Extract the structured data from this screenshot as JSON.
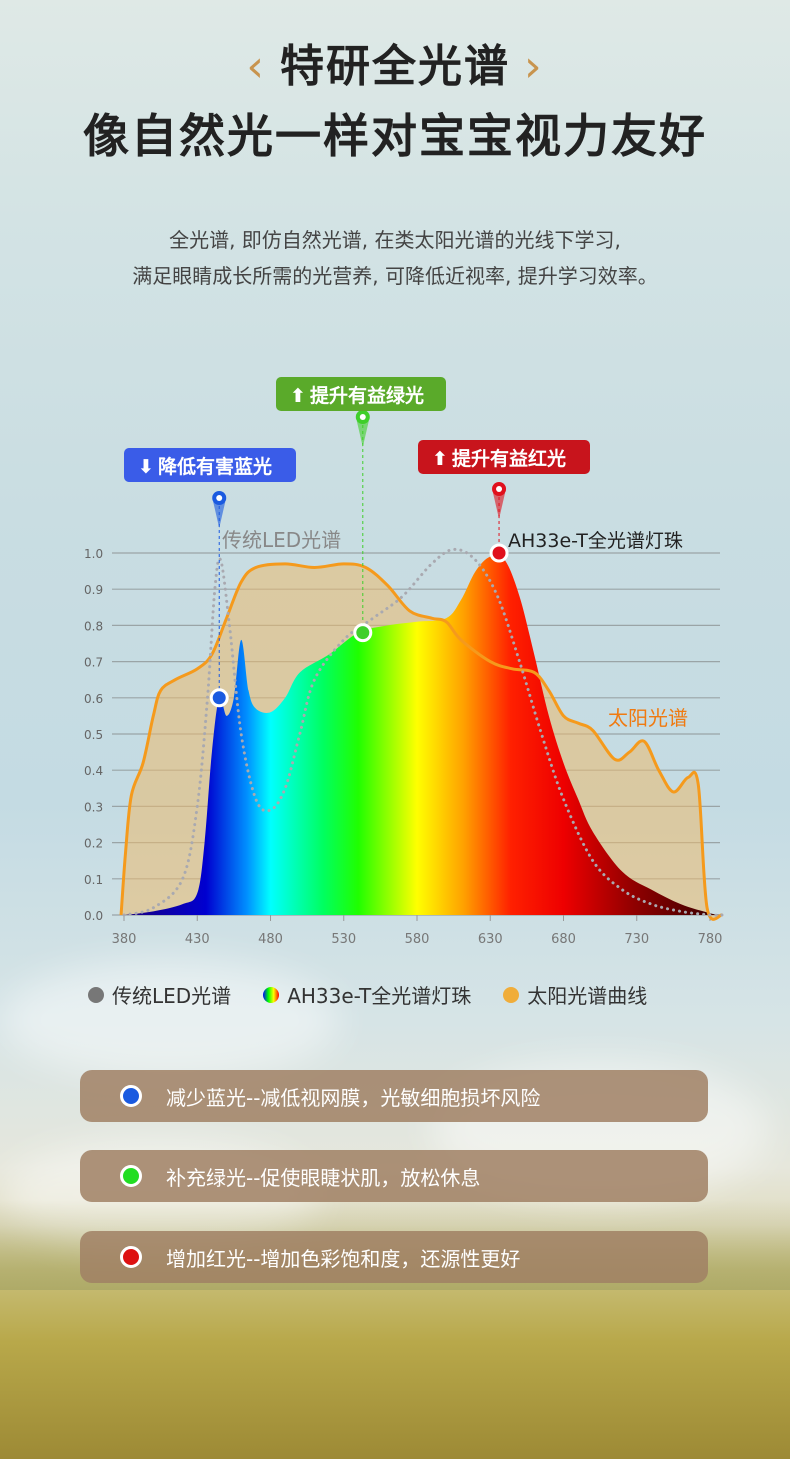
{
  "header": {
    "title1": "特研全光谱",
    "title2": "像自然光一样对宝宝视力友好",
    "chev_left": "‹",
    "chev_right": "›",
    "desc": [
      "全光谱, 即仿自然光谱, 在类太阳光谱的光线下学习,",
      "满足眼睛成长所需的光营养, 可降低近视率, 提升学习效率。"
    ]
  },
  "chart_data": {
    "type": "area",
    "xlim": [
      380,
      790
    ],
    "ylim": [
      0,
      1.0
    ],
    "grid": true,
    "xticks": [
      380,
      430,
      480,
      530,
      580,
      630,
      680,
      730,
      780
    ],
    "yticks": [
      "0.0",
      "0.1",
      "0.2",
      "0.3",
      "0.4",
      "0.5",
      "0.6",
      "0.7",
      "0.8",
      "0.9",
      "1.0"
    ],
    "series": [
      {
        "name": "太阳光谱曲线",
        "label": "太阳光谱",
        "color": "#f59a1c",
        "x": [
          378,
          381,
          385,
          393,
          400,
          405,
          415,
          430,
          440,
          450,
          460,
          470,
          490,
          510,
          530,
          545,
          560,
          575,
          590,
          600,
          610,
          630,
          645,
          660,
          670,
          680,
          690,
          700,
          715,
          725,
          735,
          745,
          755,
          765,
          772,
          778,
          790
        ],
        "y": [
          0,
          0.17,
          0.33,
          0.42,
          0.55,
          0.62,
          0.65,
          0.68,
          0.72,
          0.82,
          0.92,
          0.96,
          0.97,
          0.96,
          0.97,
          0.96,
          0.91,
          0.84,
          0.82,
          0.81,
          0.76,
          0.7,
          0.68,
          0.67,
          0.62,
          0.55,
          0.53,
          0.51,
          0.43,
          0.45,
          0.48,
          0.4,
          0.34,
          0.38,
          0.36,
          0.02,
          0
        ]
      },
      {
        "name": "传统LED光谱",
        "label": "传统LED光谱",
        "color": "#9a9a9a",
        "x": [
          380,
          400,
          420,
          430,
          437,
          442,
          446,
          452,
          460,
          470,
          480,
          490,
          500,
          510,
          530,
          550,
          570,
          590,
          605,
          620,
          635,
          650,
          665,
          680,
          700,
          720,
          740,
          760,
          780,
          790
        ],
        "y": [
          0,
          0.02,
          0.1,
          0.3,
          0.6,
          0.9,
          0.98,
          0.8,
          0.5,
          0.32,
          0.29,
          0.35,
          0.5,
          0.65,
          0.76,
          0.82,
          0.88,
          0.97,
          1.01,
          0.98,
          0.88,
          0.7,
          0.5,
          0.32,
          0.15,
          0.07,
          0.03,
          0.01,
          0,
          0
        ]
      },
      {
        "name": "AH33e-T全光谱灯珠",
        "label": "AH33e-T全光谱灯珠",
        "x": [
          380,
          400,
          420,
          430,
          435,
          440,
          445,
          450,
          455,
          460,
          465,
          470,
          480,
          490,
          500,
          520,
          540,
          560,
          580,
          600,
          610,
          620,
          630,
          640,
          650,
          660,
          670,
          680,
          690,
          700,
          720,
          740,
          760,
          780,
          790
        ],
        "y": [
          0,
          0.01,
          0.03,
          0.06,
          0.2,
          0.45,
          0.6,
          0.55,
          0.6,
          0.76,
          0.62,
          0.57,
          0.56,
          0.6,
          0.67,
          0.72,
          0.78,
          0.8,
          0.81,
          0.82,
          0.87,
          0.95,
          0.99,
          0.98,
          0.88,
          0.72,
          0.55,
          0.42,
          0.32,
          0.23,
          0.12,
          0.07,
          0.03,
          0.005,
          0
        ]
      }
    ],
    "callouts": [
      {
        "label": "降低有害蓝光",
        "arrow": "down",
        "color": "#3a5ce8",
        "marker_color": "#1a5ae0",
        "x": 445,
        "y": 0.6
      },
      {
        "label": "提升有益绿光",
        "arrow": "up",
        "color": "#5aaa2a",
        "marker_color": "#3fcf2a",
        "x": 543,
        "y": 0.78
      },
      {
        "label": "提升有益红光",
        "arrow": "up",
        "color": "#c8141c",
        "marker_color": "#e0101c",
        "x": 636,
        "y": 1.0
      }
    ]
  },
  "legend": [
    {
      "label": "传统LED光谱",
      "color": "#777777"
    },
    {
      "label": "AH33e-T全光谱灯珠",
      "color": "rainbow"
    },
    {
      "label": "太阳光谱曲线",
      "color": "#f0ad3a"
    }
  ],
  "benefits": [
    {
      "text": "减少蓝光--减低视网膜，光敏细胞损坏风险",
      "color": "#1a5ae0"
    },
    {
      "text": "补充绿光--促使眼睫状肌，放松休息",
      "color": "#22dd22"
    },
    {
      "text": "增加红光--增加色彩饱和度，还源性更好",
      "color": "#dd1111"
    }
  ]
}
